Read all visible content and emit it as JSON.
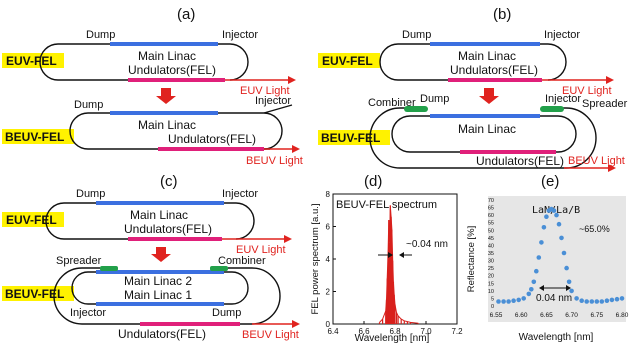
{
  "panels": {
    "a": {
      "label": "(a)"
    },
    "b": {
      "label": "(b)"
    },
    "c": {
      "label": "(c)"
    },
    "d": {
      "label": "(d)"
    },
    "e": {
      "label": "(e)"
    }
  },
  "tags": {
    "euv": "EUV-FEL",
    "beuv": "BEUV-FEL"
  },
  "components": {
    "dump": "Dump",
    "injector": "Injector",
    "main_linac": "Main Linac",
    "main_linac_2": "Main Linac 2",
    "main_linac_1": "Main Linac 1",
    "undulators": "Undulators(FEL)",
    "combiner": "Combiner",
    "spreader": "Spreader",
    "euv_light": "EUV Light",
    "beuv_light": "BEUV Light"
  },
  "colors": {
    "linac": "#3b6fe0",
    "undulator": "#e0207a",
    "light": "#e0231f",
    "tag_bg": "#fff200",
    "green": "#22a04a",
    "spectrum": "#d8201c",
    "reflect_pts": "#4a8fd6",
    "reflect_bg": "#e6e6e6"
  },
  "chart_data": [
    {
      "type": "line",
      "title": "BEUV-FEL spectrum",
      "xlabel": "Wavelength [nm]",
      "ylabel": "FEL power spectrum [a.u.]",
      "xlim": [
        6.4,
        7.2
      ],
      "ylim": [
        0,
        8
      ],
      "xticks": [
        "6.4",
        "6.6",
        "6.8",
        "7.0",
        "7.2"
      ],
      "yticks": [
        "0",
        "2",
        "4",
        "6",
        "8"
      ],
      "annotation": "~0.04 nm",
      "series": [
        {
          "x": [
            6.7,
            6.72,
            6.74,
            6.745,
            6.75,
            6.755,
            6.76,
            6.765,
            6.77,
            6.775,
            6.78,
            6.785,
            6.79,
            6.795,
            6.8,
            6.81,
            6.82,
            6.84,
            6.86,
            6.88,
            6.9,
            6.95
          ],
          "y": [
            0.1,
            0.3,
            0.8,
            1.5,
            2.8,
            4.2,
            6.4,
            5.0,
            7.3,
            6.6,
            5.8,
            3.9,
            2.6,
            1.8,
            1.2,
            0.7,
            0.5,
            0.3,
            0.2,
            0.15,
            0.1,
            0.05
          ]
        }
      ]
    },
    {
      "type": "scatter",
      "title": "LaN/La/B",
      "xlabel": "Wavelength [nm]",
      "ylabel": "Reflectance [%]",
      "xlim": [
        6.55,
        6.8
      ],
      "ylim": [
        0,
        70
      ],
      "xticks": [
        "6.55",
        "6.60",
        "6.65",
        "6.70",
        "6.75",
        "6.80"
      ],
      "yticks": [
        "0",
        "5",
        "10",
        "15",
        "20",
        "25",
        "30",
        "35",
        "40",
        "45",
        "50",
        "55",
        "60",
        "65",
        "70"
      ],
      "peak_label": "~65.0%",
      "width_label": "0.04 nm",
      "series": [
        {
          "x": [
            6.555,
            6.565,
            6.575,
            6.585,
            6.595,
            6.605,
            6.615,
            6.62,
            6.625,
            6.63,
            6.635,
            6.64,
            6.645,
            6.65,
            6.655,
            6.66,
            6.665,
            6.67,
            6.675,
            6.68,
            6.685,
            6.69,
            6.695,
            6.7,
            6.71,
            6.72,
            6.73,
            6.74,
            6.75,
            6.76,
            6.77,
            6.78,
            6.79,
            6.8
          ],
          "y": [
            3,
            3,
            3,
            3.5,
            4,
            5,
            8,
            11,
            16,
            23,
            32,
            42,
            52,
            59,
            63,
            64,
            63,
            60,
            54,
            45,
            35,
            25,
            16,
            10,
            5,
            3.5,
            3,
            3,
            3,
            3,
            3.5,
            4,
            4.5,
            5
          ]
        }
      ]
    }
  ]
}
